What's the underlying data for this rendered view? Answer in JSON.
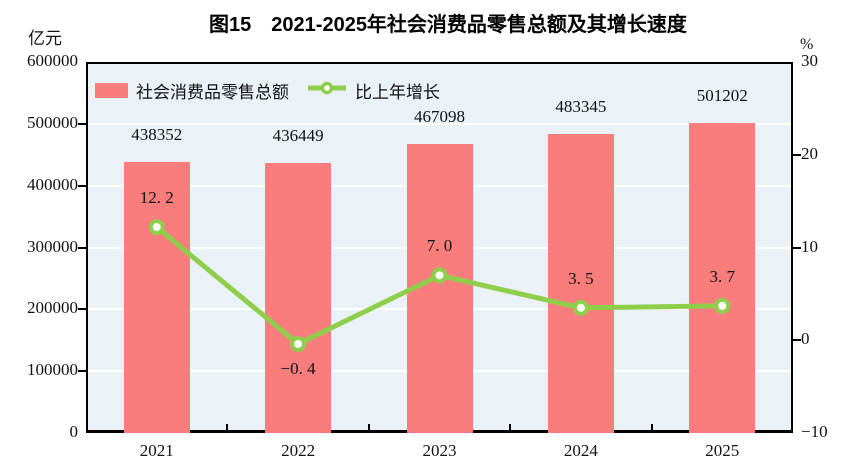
{
  "figure": {
    "title": "图15　2021-2025年社会消费品零售总额及其增长速度",
    "left_unit": "亿元",
    "right_unit": "%"
  },
  "chart_data": {
    "type": "bar",
    "combo": "bar+line",
    "categories": [
      "2021",
      "2022",
      "2023",
      "2024",
      "2025"
    ],
    "series": [
      {
        "name": "社会消费品零售总额",
        "kind": "bar",
        "axis": "left",
        "color": "#FA7D7D",
        "values": [
          438352,
          436449,
          467098,
          483345,
          501202
        ],
        "labels": [
          "438352",
          "436449",
          "467098",
          "483345",
          "501202"
        ]
      },
      {
        "name": "比上年增长",
        "kind": "line",
        "axis": "right",
        "color": "#8FCE4B",
        "marker_fill": "#FFFFFF",
        "values": [
          12.2,
          -0.4,
          7.0,
          3.5,
          3.7
        ],
        "labels": [
          "12. 2",
          "−0. 4",
          "7. 0",
          "3. 5",
          "3. 7"
        ],
        "label_position": [
          "above",
          "below",
          "above",
          "above",
          "above"
        ]
      }
    ],
    "left_axis": {
      "unit": "亿元",
      "min": 0,
      "max": 600000,
      "tick_step": 100000,
      "tick_labels": [
        "0",
        "100000",
        "200000",
        "300000",
        "400000",
        "500000",
        "600000"
      ]
    },
    "right_axis": {
      "unit": "%",
      "min": -10,
      "max": 30,
      "tick_step": 10,
      "tick_labels": [
        "−10",
        "0",
        "10",
        "20",
        "30"
      ]
    },
    "grid": true,
    "gridline_color": "#FFFFFF",
    "plot_background": "#EAF1F7",
    "axis_color": "#000000",
    "legend_position": "top-left-inside"
  }
}
